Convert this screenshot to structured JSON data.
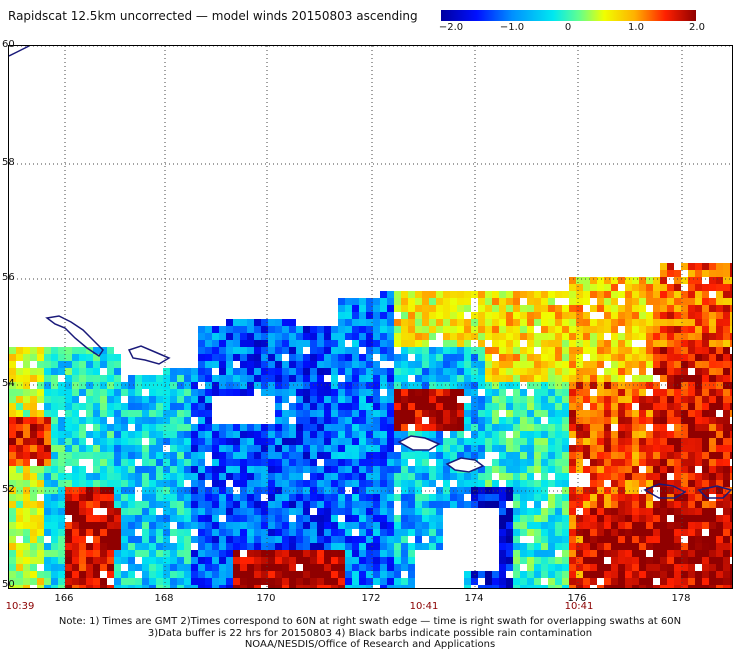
{
  "title": "Rapidscat 12.5km uncorrected — model winds 20150803 ascending",
  "colorbar": {
    "labels": [
      "−2.0",
      "−1.0",
      "0",
      "1.0",
      "2.0"
    ],
    "colors": [
      "#0000a0",
      "#0010ff",
      "#0090ff",
      "#00e8f0",
      "#60ff90",
      "#f0ff00",
      "#ffb000",
      "#ff2000",
      "#900000"
    ]
  },
  "map": {
    "lat_labels": [
      "60",
      "58",
      "56",
      "54",
      "52",
      "50"
    ],
    "lon_labels": [
      "166",
      "168",
      "170",
      "172",
      "174",
      "176",
      "178"
    ],
    "lon_range": [
      165.0,
      179.5
    ],
    "lat_range": [
      50.0,
      60.0
    ],
    "land_color": "#1a1a7a",
    "grid_color": "#444444"
  },
  "swath_times": [
    {
      "label": "10:39",
      "lon": 165.0
    },
    {
      "label": "10:41",
      "lon": 173.0
    },
    {
      "label": "10:41",
      "lon": 176.0
    }
  ],
  "notes": [
    "Note: 1) Times are GMT 2)Times correspond to 60N at right swath edge — time is right swath for overlapping swaths at 60N",
    "3)Data buffer is 22 hrs for 20150803 4) Black barbs indicate possible rain contamination",
    "NOAA/NESDIS/Office of Research and Applications"
  ]
}
